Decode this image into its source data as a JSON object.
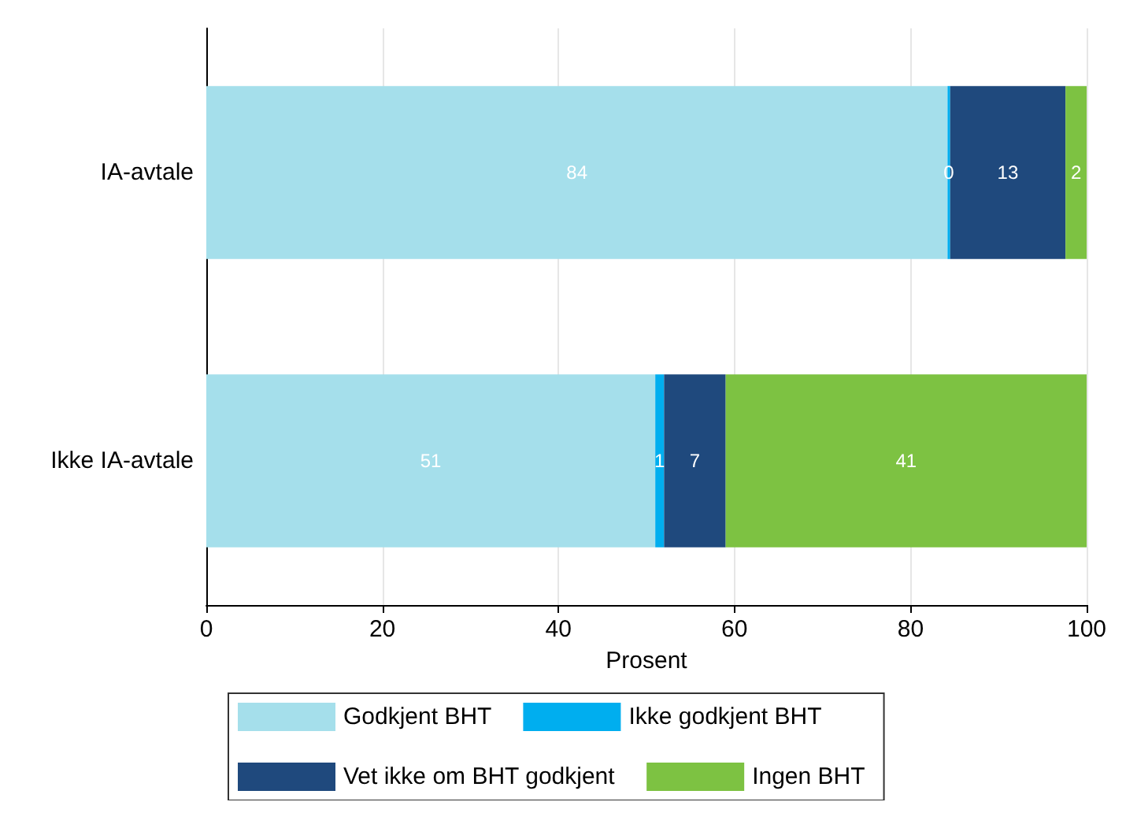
{
  "chart_data": {
    "type": "bar",
    "orientation": "horizontal",
    "stacked": true,
    "xlabel": "Prosent",
    "categories": [
      "IA-avtale",
      "Ikke IA-avtale"
    ],
    "series": [
      {
        "name": "Godkjent BHT",
        "color": "#a5dfeb",
        "values": [
          84.2,
          51
        ],
        "value_labels": [
          "84",
          "51"
        ]
      },
      {
        "name": "Ikke godkjent BHT",
        "color": "#00aeef",
        "values": [
          0.3,
          1
        ],
        "value_labels": [
          "0",
          "1"
        ]
      },
      {
        "name": "Vet ikke om BHT godkjent",
        "color": "#1f497d",
        "values": [
          13.1,
          7
        ],
        "value_labels": [
          "13",
          "7"
        ]
      },
      {
        "name": "Ingen BHT",
        "color": "#7dc242",
        "values": [
          2.4,
          41
        ],
        "value_labels": [
          "2",
          "41"
        ]
      }
    ],
    "xlim": [
      0,
      100
    ],
    "xticks": [
      0,
      20,
      40,
      60,
      80,
      100
    ],
    "grid": "x",
    "legend": "bottom"
  }
}
